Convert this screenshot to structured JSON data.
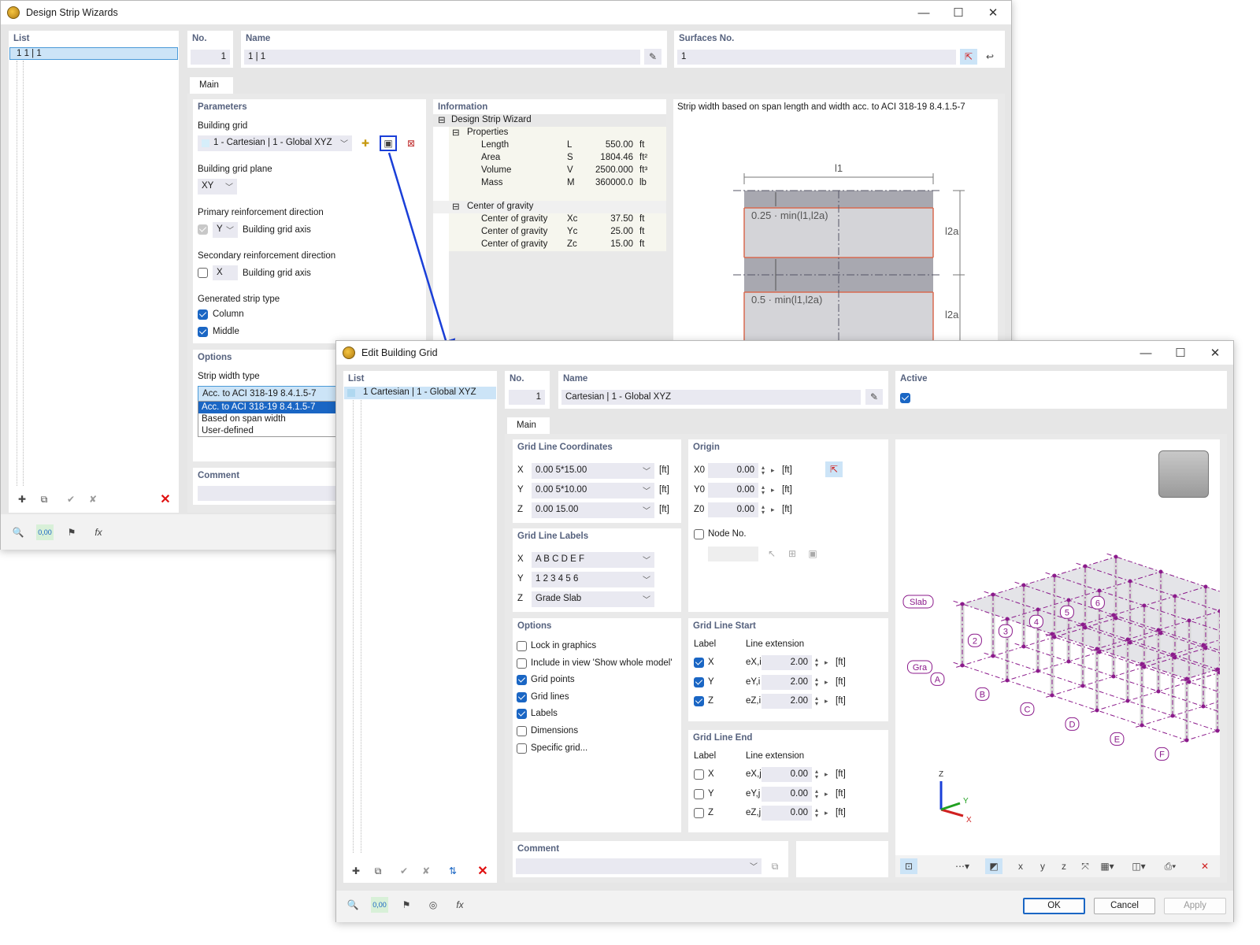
{
  "wizard": {
    "title": "Design Strip Wizards",
    "list": {
      "header": "List",
      "items": [
        "1  1 | 1"
      ]
    },
    "no": {
      "label": "No.",
      "value": "1"
    },
    "name": {
      "label": "Name",
      "value": "1 | 1"
    },
    "surfaces": {
      "label": "Surfaces No.",
      "value": "1"
    },
    "tab_main": "Main",
    "parameters": {
      "title": "Parameters",
      "building_grid_label": "Building grid",
      "building_grid_value": "1 - Cartesian | 1 - Global XYZ",
      "plane_label": "Building grid plane",
      "plane_value": "XY",
      "primary_label": "Primary reinforcement direction",
      "primary_axis": "Y",
      "primary_text": "Building grid axis",
      "secondary_label": "Secondary reinforcement direction",
      "secondary_axis": "X",
      "secondary_text": "Building grid axis",
      "strip_type_label": "Generated strip type",
      "column": "Column",
      "middle": "Middle"
    },
    "options": {
      "title": "Options",
      "strip_width_label": "Strip width type",
      "strip_width_value": "Acc. to ACI 318-19 8.4.1.5-7",
      "dropdown_options": [
        "Acc. to ACI 318-19 8.4.1.5-7",
        "Based on span width",
        "User-defined"
      ]
    },
    "comment": {
      "title": "Comment"
    },
    "information": {
      "title": "Information",
      "root": "Design Strip Wizard",
      "properties": "Properties",
      "props": [
        {
          "name": "Length",
          "sym": "L",
          "value": "550.00",
          "unit": "ft"
        },
        {
          "name": "Area",
          "sym": "S",
          "value": "1804.46",
          "unit": "ft²"
        },
        {
          "name": "Volume",
          "sym": "V",
          "value": "2500.000",
          "unit": "ft³"
        },
        {
          "name": "Mass",
          "sym": "M",
          "value": "360000.0",
          "unit": "lb"
        }
      ],
      "cog": "Center of gravity",
      "cogs": [
        {
          "name": "Center of gravity",
          "sym": "Xc",
          "value": "37.50",
          "unit": "ft"
        },
        {
          "name": "Center of gravity",
          "sym": "Yc",
          "value": "25.00",
          "unit": "ft"
        },
        {
          "name": "Center of gravity",
          "sym": "Zc",
          "value": "15.00",
          "unit": "ft"
        }
      ]
    },
    "figure": {
      "caption": "Strip width based on span length and width acc. to ACI 318-19 8.4.1.5-7",
      "l1": "l1",
      "l2a": "l2a",
      "f1": "0.25 · min(l1,l2a)",
      "f2": "0.5 · min(l1,l2a)"
    }
  },
  "grid": {
    "title": "Edit Building Grid",
    "list": {
      "header": "List",
      "items": [
        "1   Cartesian | 1 - Global XYZ"
      ]
    },
    "no": {
      "label": "No.",
      "value": "1"
    },
    "name": {
      "label": "Name",
      "value": "Cartesian | 1 - Global XYZ"
    },
    "active": {
      "label": "Active",
      "checked": true
    },
    "tab_main": "Main",
    "coords": {
      "title": "Grid Line Coordinates",
      "rows": [
        {
          "axis": "X",
          "value": "0.00 5*15.00",
          "unit": "[ft]"
        },
        {
          "axis": "Y",
          "value": "0.00 5*10.00",
          "unit": "[ft]"
        },
        {
          "axis": "Z",
          "value": "0.00 15.00",
          "unit": "[ft]"
        }
      ]
    },
    "labels": {
      "title": "Grid Line Labels",
      "rows": [
        {
          "axis": "X",
          "value": "A B C D E F"
        },
        {
          "axis": "Y",
          "value": "1 2 3 4 5 6"
        },
        {
          "axis": "Z",
          "value": "Grade Slab"
        }
      ]
    },
    "options": {
      "title": "Options",
      "items": [
        {
          "label": "Lock in graphics",
          "checked": false
        },
        {
          "label": "Include in view 'Show whole model'",
          "checked": false
        },
        {
          "label": "Grid points",
          "checked": true
        },
        {
          "label": "Grid lines",
          "checked": true
        },
        {
          "label": "Labels",
          "checked": true
        },
        {
          "label": "Dimensions",
          "checked": false
        },
        {
          "label": "Specific grid...",
          "checked": false
        }
      ]
    },
    "origin": {
      "title": "Origin",
      "rows": [
        {
          "sym": "X0",
          "value": "0.00",
          "unit": "[ft]"
        },
        {
          "sym": "Y0",
          "value": "0.00",
          "unit": "[ft]"
        },
        {
          "sym": "Z0",
          "value": "0.00",
          "unit": "[ft]"
        }
      ],
      "node_label": "Node No.",
      "node_value": ""
    },
    "start": {
      "title": "Grid Line Start",
      "label_h": "Label",
      "ext_h": "Line extension",
      "rows": [
        {
          "axis": "X",
          "sym": "eX,i",
          "value": "2.00",
          "unit": "[ft]",
          "checked": true
        },
        {
          "axis": "Y",
          "sym": "eY,i",
          "value": "2.00",
          "unit": "[ft]",
          "checked": true
        },
        {
          "axis": "Z",
          "sym": "eZ,i",
          "value": "2.00",
          "unit": "[ft]",
          "checked": true
        }
      ]
    },
    "end": {
      "title": "Grid Line End",
      "label_h": "Label",
      "ext_h": "Line extension",
      "rows": [
        {
          "axis": "X",
          "sym": "eX,j",
          "value": "0.00",
          "unit": "[ft]",
          "checked": false
        },
        {
          "axis": "Y",
          "sym": "eY,j",
          "value": "0.00",
          "unit": "[ft]",
          "checked": false
        },
        {
          "axis": "Z",
          "sym": "eZ,j",
          "value": "0.00",
          "unit": "[ft]",
          "checked": false
        }
      ]
    },
    "comment": {
      "title": "Comment",
      "value": ""
    },
    "view": {
      "x_labels": [
        "A",
        "B",
        "C",
        "D",
        "E",
        "F"
      ],
      "y_labels": [
        "2",
        "3",
        "4",
        "5",
        "6"
      ],
      "z_labels": [
        "Gra",
        "Slab"
      ],
      "axis_x": "X",
      "axis_y": "Y",
      "axis_z": "Z",
      "grid_color": "#8b1a8b"
    },
    "buttons": {
      "ok": "OK",
      "cancel": "Cancel",
      "apply": "Apply"
    }
  },
  "colors": {
    "accent": "#1a66c4",
    "selection": "#cce4f7",
    "panel_title": "#56627e"
  }
}
